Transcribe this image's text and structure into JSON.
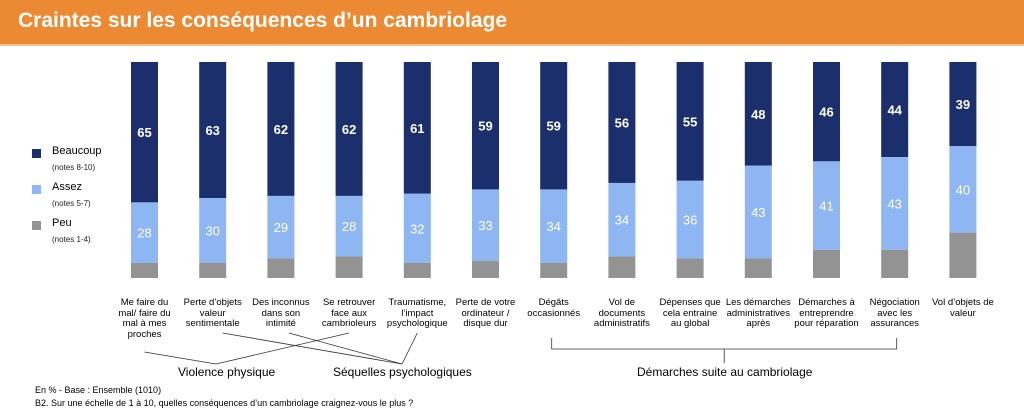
{
  "header": {
    "title": "Craintes sur les conséquences d’un cambriolage"
  },
  "colors": {
    "beaucoup": "#1a2f6b",
    "assez": "#8eb6f2",
    "peu": "#939393",
    "header": "#ec8a33"
  },
  "legend": [
    {
      "label": "Beaucoup",
      "sub": "(notes 8-10)"
    },
    {
      "label": "Assez",
      "sub": "(notes 5-7)"
    },
    {
      "label": "Peu",
      "sub": "(notes 1-4)"
    }
  ],
  "chart_data": {
    "type": "bar",
    "stacked": true,
    "categories": [
      "Me faire du mal/ faire du mal à mes proches",
      "Perte d’objets valeur sentimentale",
      "Des inconnus dans son intimité",
      "Se retrouver face aux cambrioleurs",
      "Traumatisme, l’impact psychologique",
      "Perte de votre ordinateur / disque dur",
      "Dégâts occasionnés",
      "Vol de documents administratifs",
      "Dépenses que cela entraine au global",
      "Les démarches administratives après",
      "Démarches à entreprendre pour réparation",
      "Négociation avec les assurances",
      "Vol d’objets de valeur"
    ],
    "series": [
      {
        "name": "Beaucoup",
        "values": [
          65,
          63,
          62,
          62,
          61,
          59,
          59,
          56,
          55,
          48,
          46,
          44,
          39
        ]
      },
      {
        "name": "Assez",
        "values": [
          28,
          30,
          29,
          28,
          32,
          33,
          34,
          34,
          36,
          43,
          41,
          43,
          40
        ]
      },
      {
        "name": "Peu",
        "values": [
          7,
          7,
          9,
          10,
          7,
          8,
          7,
          10,
          9,
          9,
          13,
          13,
          21
        ]
      }
    ],
    "ylim": [
      0,
      100
    ],
    "groups": [
      {
        "label": "Violence physique",
        "members": [
          0,
          3
        ]
      },
      {
        "label": "Séquelles psychologiques",
        "members": [
          1,
          2,
          4
        ]
      },
      {
        "label": "Démarches suite au cambriolage",
        "members": [
          6,
          11
        ]
      }
    ]
  },
  "footnotes": [
    "En % - Base : Ensemble (1010)",
    "B2. Sur une échelle de 1 à 10, quelles conséquences d’un cambriolage craignez-vous le plus ?"
  ]
}
